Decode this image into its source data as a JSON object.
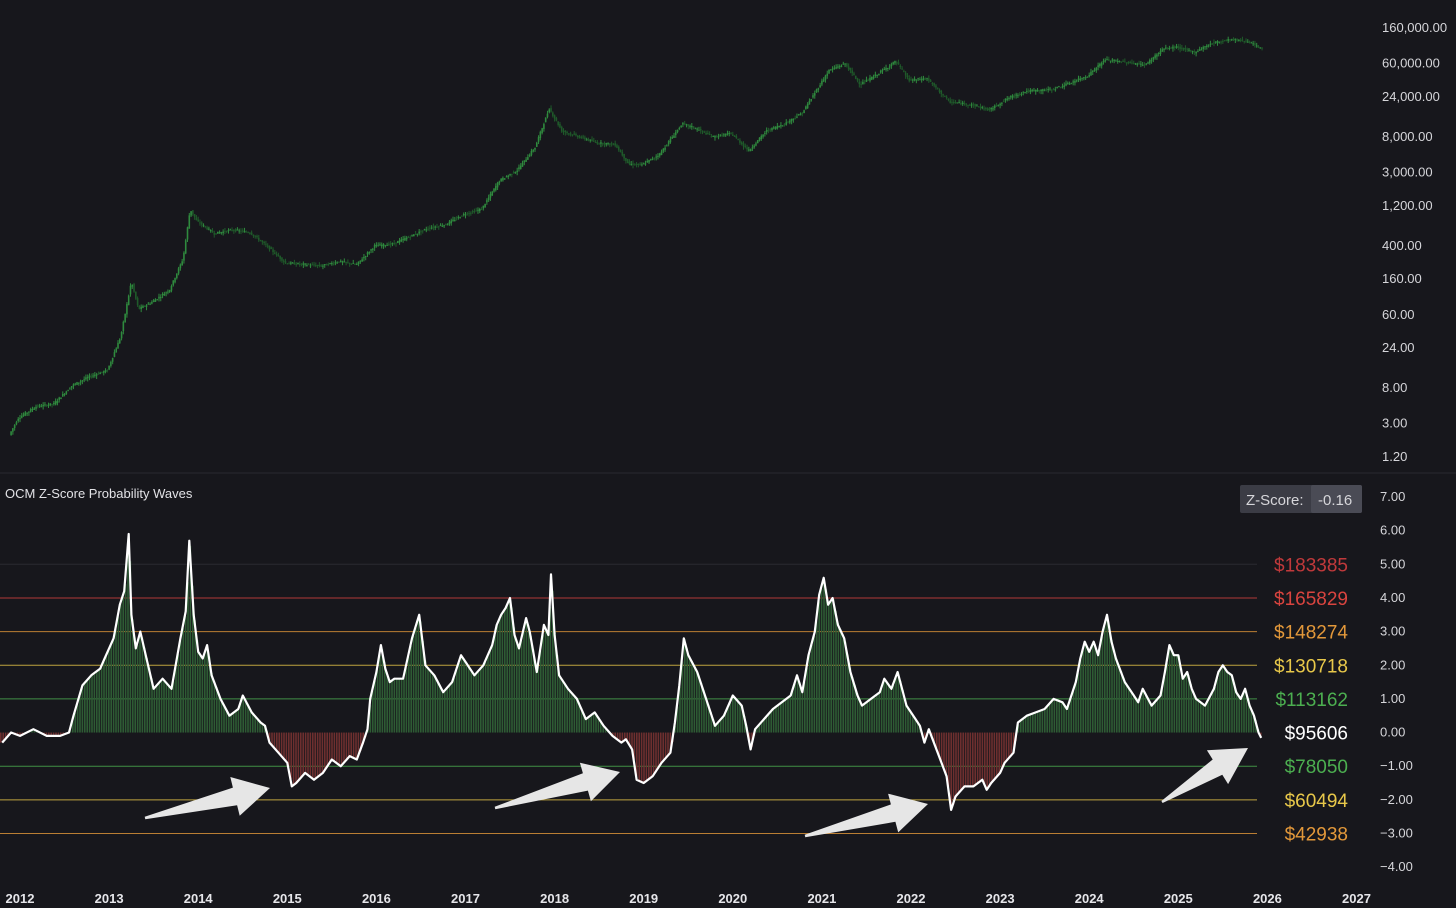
{
  "chart_data": [
    {
      "type": "candlestick",
      "scale": "log",
      "ylim": [
        0.8,
        220000
      ],
      "y_ticks": [
        "160,000.00",
        "60,000.00",
        "24,000.00",
        "8,000.00",
        "3,000.00",
        "1,200.00",
        "400.00",
        "160.00",
        "60.00",
        "24.00",
        "8.00",
        "3.00",
        "1.20"
      ],
      "y_tick_values": [
        160000,
        60000,
        24000,
        8000,
        3000,
        1200,
        400,
        160,
        60,
        24,
        8,
        3,
        1.2
      ],
      "candle_color": "#2f8a3e",
      "price_path": [
        [
          2011.9,
          2.2
        ],
        [
          2012.0,
          3.5
        ],
        [
          2012.2,
          4.8
        ],
        [
          2012.4,
          5.2
        ],
        [
          2012.6,
          8.5
        ],
        [
          2012.8,
          11
        ],
        [
          2013.0,
          13
        ],
        [
          2013.15,
          33
        ],
        [
          2013.27,
          150
        ],
        [
          2013.35,
          70
        ],
        [
          2013.5,
          85
        ],
        [
          2013.7,
          120
        ],
        [
          2013.85,
          280
        ],
        [
          2013.93,
          1100
        ],
        [
          2014.0,
          800
        ],
        [
          2014.2,
          560
        ],
        [
          2014.4,
          620
        ],
        [
          2014.6,
          580
        ],
        [
          2014.8,
          390
        ],
        [
          2015.0,
          250
        ],
        [
          2015.2,
          240
        ],
        [
          2015.4,
          230
        ],
        [
          2015.6,
          260
        ],
        [
          2015.8,
          240
        ],
        [
          2016.0,
          400
        ],
        [
          2016.2,
          420
        ],
        [
          2016.4,
          520
        ],
        [
          2016.6,
          650
        ],
        [
          2016.8,
          720
        ],
        [
          2017.0,
          950
        ],
        [
          2017.2,
          1100
        ],
        [
          2017.4,
          2400
        ],
        [
          2017.6,
          3200
        ],
        [
          2017.8,
          6000
        ],
        [
          2017.96,
          17500
        ],
        [
          2018.1,
          9500
        ],
        [
          2018.3,
          8000
        ],
        [
          2018.5,
          6800
        ],
        [
          2018.7,
          6500
        ],
        [
          2018.85,
          3800
        ],
        [
          2019.0,
          3700
        ],
        [
          2019.2,
          5000
        ],
        [
          2019.45,
          11500
        ],
        [
          2019.6,
          10200
        ],
        [
          2019.8,
          8000
        ],
        [
          2020.0,
          8800
        ],
        [
          2020.2,
          5500
        ],
        [
          2020.4,
          9500
        ],
        [
          2020.6,
          11500
        ],
        [
          2020.8,
          15500
        ],
        [
          2020.95,
          28000
        ],
        [
          2021.1,
          50000
        ],
        [
          2021.28,
          60000
        ],
        [
          2021.45,
          34000
        ],
        [
          2021.6,
          42000
        ],
        [
          2021.85,
          64000
        ],
        [
          2022.0,
          38000
        ],
        [
          2022.2,
          40000
        ],
        [
          2022.45,
          21000
        ],
        [
          2022.7,
          19500
        ],
        [
          2022.9,
          16800
        ],
        [
          2023.1,
          23000
        ],
        [
          2023.3,
          28000
        ],
        [
          2023.6,
          29500
        ],
        [
          2023.8,
          35000
        ],
        [
          2024.0,
          43000
        ],
        [
          2024.2,
          67000
        ],
        [
          2024.45,
          62000
        ],
        [
          2024.65,
          58000
        ],
        [
          2024.85,
          90000
        ],
        [
          2025.0,
          95000
        ],
        [
          2025.2,
          82000
        ],
        [
          2025.4,
          106000
        ],
        [
          2025.6,
          117000
        ],
        [
          2025.8,
          112000
        ],
        [
          2025.95,
          90000
        ]
      ]
    },
    {
      "type": "area",
      "title": "OCM Z-Score Probability Waves",
      "zscore_label": "Z-Score:",
      "zscore_value": "-0.16",
      "ylim": [
        -4.0,
        7.0
      ],
      "y_ticks": [
        "7.00",
        "6.00",
        "5.00",
        "4.00",
        "3.00",
        "2.00",
        "1.00",
        "0.00",
        "−1.00",
        "−2.00",
        "−3.00",
        "−4.00"
      ],
      "y_tick_values": [
        7,
        6,
        5,
        4,
        3,
        2,
        1,
        0,
        -1,
        -2,
        -3,
        -4
      ],
      "positive_color": "#2e5b34",
      "negative_color": "#6e2f2f",
      "line_color": "#ffffff",
      "bands": [
        {
          "level": 5,
          "label": "$183385",
          "color": "#c0393b",
          "line": false
        },
        {
          "level": 4,
          "label": "$165829",
          "color": "#d9443f",
          "line": true
        },
        {
          "level": 3,
          "label": "$148274",
          "color": "#e3983a",
          "line": true
        },
        {
          "level": 2,
          "label": "$130718",
          "color": "#e8c84a",
          "line": true
        },
        {
          "level": 1,
          "label": "$113162",
          "color": "#4caf50",
          "line": true
        },
        {
          "level": 0,
          "label": "$95606",
          "color": "#ffffff",
          "line": false
        },
        {
          "level": -1,
          "label": "$78050",
          "color": "#4caf50",
          "line": true
        },
        {
          "level": -2,
          "label": "$60494",
          "color": "#e8c84a",
          "line": true
        },
        {
          "level": -3,
          "label": "$42938",
          "color": "#e3983a",
          "line": true
        }
      ],
      "x_ticks": [
        "2012",
        "2013",
        "2014",
        "2015",
        "2016",
        "2017",
        "2018",
        "2019",
        "2020",
        "2021",
        "2022",
        "2023",
        "2024",
        "2025",
        "2026",
        "2027"
      ],
      "x_tick_values": [
        2012,
        2013,
        2014,
        2015,
        2016,
        2017,
        2018,
        2019,
        2020,
        2021,
        2022,
        2023,
        2024,
        2025,
        2026,
        2027
      ],
      "zscore_series": [
        [
          2011.8,
          -0.3
        ],
        [
          2011.9,
          0.0
        ],
        [
          2012.0,
          -0.1
        ],
        [
          2012.15,
          0.1
        ],
        [
          2012.3,
          -0.1
        ],
        [
          2012.45,
          -0.1
        ],
        [
          2012.55,
          0.0
        ],
        [
          2012.6,
          0.5
        ],
        [
          2012.7,
          1.4
        ],
        [
          2012.8,
          1.7
        ],
        [
          2012.9,
          1.9
        ],
        [
          2012.95,
          2.2
        ],
        [
          2013.05,
          2.8
        ],
        [
          2013.12,
          3.8
        ],
        [
          2013.17,
          4.2
        ],
        [
          2013.22,
          5.9
        ],
        [
          2013.25,
          3.5
        ],
        [
          2013.3,
          2.5
        ],
        [
          2013.35,
          3.0
        ],
        [
          2013.42,
          2.2
        ],
        [
          2013.5,
          1.3
        ],
        [
          2013.6,
          1.6
        ],
        [
          2013.7,
          1.3
        ],
        [
          2013.8,
          2.8
        ],
        [
          2013.86,
          3.6
        ],
        [
          2013.9,
          5.7
        ],
        [
          2013.95,
          3.5
        ],
        [
          2014.0,
          2.4
        ],
        [
          2014.05,
          2.2
        ],
        [
          2014.1,
          2.6
        ],
        [
          2014.15,
          1.7
        ],
        [
          2014.25,
          1.0
        ],
        [
          2014.35,
          0.5
        ],
        [
          2014.45,
          0.7
        ],
        [
          2014.5,
          1.1
        ],
        [
          2014.6,
          0.6
        ],
        [
          2014.7,
          0.3
        ],
        [
          2014.75,
          0.2
        ],
        [
          2014.8,
          -0.3
        ],
        [
          2014.9,
          -0.6
        ],
        [
          2015.0,
          -0.9
        ],
        [
          2015.05,
          -1.6
        ],
        [
          2015.1,
          -1.5
        ],
        [
          2015.2,
          -1.2
        ],
        [
          2015.3,
          -1.4
        ],
        [
          2015.4,
          -1.2
        ],
        [
          2015.5,
          -0.8
        ],
        [
          2015.6,
          -1.0
        ],
        [
          2015.7,
          -0.7
        ],
        [
          2015.78,
          -0.8
        ],
        [
          2015.85,
          -0.3
        ],
        [
          2015.9,
          0.1
        ],
        [
          2015.93,
          1.0
        ],
        [
          2016.0,
          1.8
        ],
        [
          2016.05,
          2.6
        ],
        [
          2016.1,
          1.9
        ],
        [
          2016.15,
          1.5
        ],
        [
          2016.2,
          1.6
        ],
        [
          2016.3,
          1.6
        ],
        [
          2016.4,
          2.8
        ],
        [
          2016.48,
          3.5
        ],
        [
          2016.55,
          2.0
        ],
        [
          2016.65,
          1.7
        ],
        [
          2016.75,
          1.2
        ],
        [
          2016.85,
          1.5
        ],
        [
          2016.95,
          2.3
        ],
        [
          2017.0,
          2.1
        ],
        [
          2017.1,
          1.7
        ],
        [
          2017.2,
          2.0
        ],
        [
          2017.3,
          2.6
        ],
        [
          2017.35,
          3.2
        ],
        [
          2017.4,
          3.5
        ],
        [
          2017.45,
          3.7
        ],
        [
          2017.5,
          4.0
        ],
        [
          2017.55,
          2.9
        ],
        [
          2017.6,
          2.5
        ],
        [
          2017.68,
          3.4
        ],
        [
          2017.72,
          3.0
        ],
        [
          2017.8,
          1.8
        ],
        [
          2017.88,
          3.2
        ],
        [
          2017.93,
          2.9
        ],
        [
          2017.96,
          4.7
        ],
        [
          2018.0,
          2.9
        ],
        [
          2018.05,
          1.7
        ],
        [
          2018.15,
          1.3
        ],
        [
          2018.25,
          1.0
        ],
        [
          2018.35,
          0.4
        ],
        [
          2018.45,
          0.6
        ],
        [
          2018.55,
          0.2
        ],
        [
          2018.65,
          -0.1
        ],
        [
          2018.75,
          -0.3
        ],
        [
          2018.8,
          -0.2
        ],
        [
          2018.87,
          -0.5
        ],
        [
          2018.92,
          -1.4
        ],
        [
          2019.0,
          -1.5
        ],
        [
          2019.1,
          -1.3
        ],
        [
          2019.2,
          -0.9
        ],
        [
          2019.3,
          -0.6
        ],
        [
          2019.35,
          0.3
        ],
        [
          2019.4,
          1.4
        ],
        [
          2019.45,
          2.8
        ],
        [
          2019.5,
          2.3
        ],
        [
          2019.6,
          1.8
        ],
        [
          2019.7,
          1.0
        ],
        [
          2019.8,
          0.2
        ],
        [
          2019.9,
          0.5
        ],
        [
          2020.0,
          1.1
        ],
        [
          2020.1,
          0.8
        ],
        [
          2020.15,
          0.2
        ],
        [
          2020.2,
          -0.5
        ],
        [
          2020.25,
          0.1
        ],
        [
          2020.35,
          0.4
        ],
        [
          2020.45,
          0.7
        ],
        [
          2020.55,
          0.9
        ],
        [
          2020.65,
          1.1
        ],
        [
          2020.72,
          1.7
        ],
        [
          2020.78,
          1.2
        ],
        [
          2020.85,
          2.3
        ],
        [
          2020.92,
          3.0
        ],
        [
          2020.97,
          4.1
        ],
        [
          2021.02,
          4.6
        ],
        [
          2021.07,
          3.8
        ],
        [
          2021.12,
          4.0
        ],
        [
          2021.18,
          3.2
        ],
        [
          2021.25,
          2.8
        ],
        [
          2021.32,
          1.8
        ],
        [
          2021.4,
          1.1
        ],
        [
          2021.45,
          0.8
        ],
        [
          2021.55,
          1.0
        ],
        [
          2021.65,
          1.2
        ],
        [
          2021.7,
          1.6
        ],
        [
          2021.78,
          1.3
        ],
        [
          2021.85,
          1.8
        ],
        [
          2021.95,
          0.8
        ],
        [
          2022.05,
          0.4
        ],
        [
          2022.1,
          0.2
        ],
        [
          2022.15,
          -0.3
        ],
        [
          2022.2,
          0.1
        ],
        [
          2022.3,
          -0.6
        ],
        [
          2022.4,
          -1.3
        ],
        [
          2022.45,
          -2.3
        ],
        [
          2022.5,
          -1.9
        ],
        [
          2022.6,
          -1.6
        ],
        [
          2022.7,
          -1.6
        ],
        [
          2022.8,
          -1.4
        ],
        [
          2022.85,
          -1.7
        ],
        [
          2022.9,
          -1.5
        ],
        [
          2023.0,
          -1.2
        ],
        [
          2023.05,
          -0.9
        ],
        [
          2023.15,
          -0.6
        ],
        [
          2023.2,
          0.3
        ],
        [
          2023.3,
          0.5
        ],
        [
          2023.4,
          0.6
        ],
        [
          2023.5,
          0.7
        ],
        [
          2023.6,
          1.0
        ],
        [
          2023.7,
          0.9
        ],
        [
          2023.75,
          0.7
        ],
        [
          2023.85,
          1.5
        ],
        [
          2023.9,
          2.2
        ],
        [
          2023.95,
          2.7
        ],
        [
          2024.0,
          2.4
        ],
        [
          2024.05,
          2.7
        ],
        [
          2024.1,
          2.3
        ],
        [
          2024.15,
          3.0
        ],
        [
          2024.2,
          3.5
        ],
        [
          2024.25,
          2.7
        ],
        [
          2024.3,
          2.2
        ],
        [
          2024.4,
          1.5
        ],
        [
          2024.5,
          1.1
        ],
        [
          2024.55,
          0.9
        ],
        [
          2024.6,
          1.3
        ],
        [
          2024.7,
          0.8
        ],
        [
          2024.8,
          1.1
        ],
        [
          2024.85,
          1.8
        ],
        [
          2024.9,
          2.6
        ],
        [
          2024.95,
          2.3
        ],
        [
          2025.0,
          2.3
        ],
        [
          2025.05,
          1.6
        ],
        [
          2025.1,
          1.8
        ],
        [
          2025.15,
          1.3
        ],
        [
          2025.2,
          1.0
        ],
        [
          2025.3,
          0.8
        ],
        [
          2025.4,
          1.3
        ],
        [
          2025.45,
          1.8
        ],
        [
          2025.5,
          2.0
        ],
        [
          2025.55,
          1.8
        ],
        [
          2025.6,
          1.7
        ],
        [
          2025.65,
          1.2
        ],
        [
          2025.7,
          1.0
        ],
        [
          2025.75,
          1.3
        ],
        [
          2025.8,
          0.8
        ],
        [
          2025.85,
          0.5
        ],
        [
          2025.9,
          0.0
        ],
        [
          2025.93,
          -0.16
        ]
      ]
    }
  ]
}
